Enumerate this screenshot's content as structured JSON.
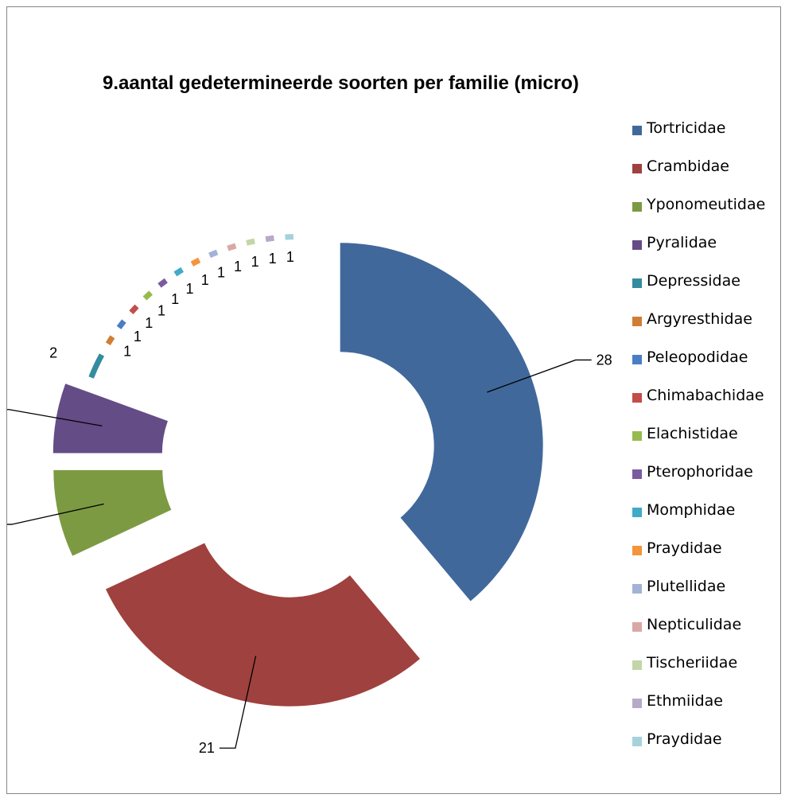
{
  "chart_data": {
    "type": "pie",
    "variant": "exploded-doughnut",
    "title": "9.aantal gedetermineerde soorten per familie (micro)",
    "legend_position": "right",
    "categories": [
      "Tortricidae",
      "Crambidae",
      "Yponomeutidae",
      "Pyralidae",
      "Depressidae",
      "Argyresthidae",
      "Peleopodidae",
      "Chimabachidae",
      "Elachistidae",
      "Pterophoridae",
      "Momphidae",
      "Praydidae",
      "Plutellidae",
      "Nepticulidae",
      "Tischeriidae",
      "Ethmiidae",
      "Praydidae"
    ],
    "values": [
      28,
      21,
      5,
      4,
      2,
      1,
      1,
      1,
      1,
      1,
      1,
      1,
      1,
      1,
      1,
      1,
      1
    ],
    "colors": [
      "#41689b",
      "#9f413e",
      "#7c9a42",
      "#644c86",
      "#358b9f",
      "#d07e33",
      "#4a7ec4",
      "#c24d4a",
      "#97ba4e",
      "#7a5ba0",
      "#40abc7",
      "#f4943d",
      "#a3b3d6",
      "#d8a8a7",
      "#c3d6a7",
      "#b6aac8",
      "#a6d2dc"
    ]
  }
}
